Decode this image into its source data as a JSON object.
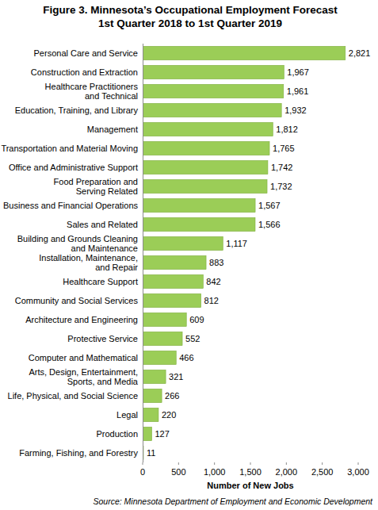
{
  "chart_data": {
    "type": "bar",
    "title": "Figure 3. Minnesota’s Occupational Employment Forecast",
    "subtitle": "1st Quarter 2018 to 1st Quarter 2019",
    "xlabel": "Number of New Jobs",
    "annotations": [
      "Source: Minnesota Department of Employment and Economic Development"
    ],
    "orientation": "horizontal",
    "categories": [
      "Personal Care and Service",
      "Construction and Extraction",
      "Healthcare Practitioners\nand Technical",
      "Education, Training, and Library",
      "Management",
      "Transportation and Material Moving",
      "Office and Administrative Support",
      "Food Preparation and\nServing Related",
      "Business and Financial Operations",
      "Sales and Related",
      "Building and Grounds Cleaning\nand Maintenance",
      "Installation, Maintenance,\nand Repair",
      "Healthcare Support",
      "Community and Social Services",
      "Architecture and Engineering",
      "Protective Service",
      "Computer and Mathematical",
      "Arts, Design, Entertainment,\nSports, and Media",
      "Life, Physical, and Social Science",
      "Legal",
      "Production",
      "Farming, Fishing, and Forestry"
    ],
    "values": [
      2821,
      1967,
      1961,
      1932,
      1812,
      1765,
      1742,
      1732,
      1567,
      1566,
      1117,
      883,
      842,
      812,
      609,
      552,
      466,
      321,
      266,
      220,
      127,
      11
    ],
    "value_labels": [
      "2,821",
      "1,967",
      "1,961",
      "1,932",
      "1,812",
      "1,765",
      "1,742",
      "1,732",
      "1,567",
      "1,566",
      "1,117",
      "883",
      "842",
      "812",
      "609",
      "552",
      "466",
      "321",
      "266",
      "220",
      "127",
      "11"
    ],
    "color": "#9bcd57",
    "xlim": [
      0,
      3000
    ],
    "xticks": [
      0,
      500,
      {
        "value": 1000,
        "label": "1,000"
      },
      {
        "value": 1500,
        "label": "1,500"
      },
      {
        "value": 2000,
        "label": "2,000"
      },
      {
        "value": 2500,
        "label": "2,500"
      },
      {
        "value": 3000,
        "label": "3,000"
      }
    ],
    "grid": false,
    "data_labels": true
  }
}
